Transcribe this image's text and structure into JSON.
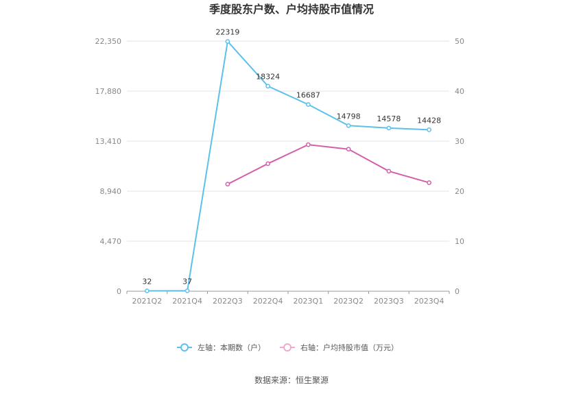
{
  "chart_data": {
    "type": "line",
    "title": "季度股东户数、户均持股市值情况",
    "categories": [
      "2021Q2",
      "2021Q4",
      "2022Q3",
      "2022Q4",
      "2023Q1",
      "2023Q2",
      "2023Q3",
      "2023Q4"
    ],
    "y_left": {
      "ticks": [
        "0",
        "4,470",
        "8,940",
        "13,410",
        "17,880",
        "22,350"
      ],
      "range": [
        0,
        22350
      ]
    },
    "y_right": {
      "ticks": [
        "0",
        "10",
        "20",
        "30",
        "40",
        "50"
      ],
      "range": [
        0,
        50
      ]
    },
    "series": [
      {
        "name": "左轴：本期数（户）",
        "axis": "left",
        "color": "#5bc0eb",
        "values": [
          32,
          37,
          22319,
          18324,
          16687,
          14798,
          14578,
          14428
        ],
        "labels": [
          "32",
          "37",
          "22319",
          "18324",
          "16687",
          "14798",
          "14578",
          "14428"
        ]
      },
      {
        "name": "右轴：户均持股市值（万元）",
        "axis": "right",
        "color": "#d45fa8",
        "values": [
          null,
          null,
          21.4,
          25.5,
          29.3,
          28.4,
          24.0,
          21.7
        ]
      }
    ],
    "grid": true,
    "legend_position": "bottom",
    "legend_markers": [
      "#5bc0eb",
      "#f0a8cf"
    ],
    "source": "数据来源：恒生聚源"
  }
}
